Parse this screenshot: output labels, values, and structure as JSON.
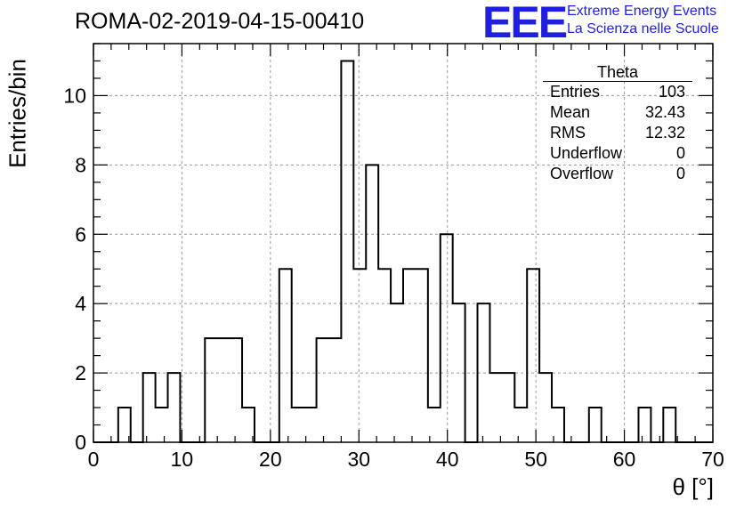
{
  "header": {
    "run_title": "ROMA-02-2019-04-15-00410",
    "logo_mark": "EEE",
    "logo_line1": "Extreme Energy Events",
    "logo_line2": "La Scienza nelle Scuole"
  },
  "stats_box": {
    "title": "Theta",
    "rows": [
      {
        "label": "Entries",
        "value": "103"
      },
      {
        "label": "Mean",
        "value": "32.43"
      },
      {
        "label": "RMS",
        "value": "12.32"
      },
      {
        "label": "Underflow",
        "value": "0"
      },
      {
        "label": "Overflow",
        "value": "0"
      }
    ]
  },
  "colors": {
    "logo": "#1f1fe0",
    "line": "#000000",
    "grid": "#999999"
  },
  "chart_data": {
    "type": "bar",
    "histogram": true,
    "title": "ROMA-02-2019-04-15-00410",
    "xlabel": "θ [°]",
    "ylabel": "Entries/bin",
    "xlim": [
      0,
      70
    ],
    "ylim": [
      0,
      11.5
    ],
    "xticks": [
      0,
      10,
      20,
      30,
      40,
      50,
      60,
      70
    ],
    "yticks": [
      0,
      2,
      4,
      6,
      8,
      10
    ],
    "grid": true,
    "bin_width": 1.4,
    "bin_start": 0,
    "values": [
      0,
      0,
      1,
      0,
      2,
      1,
      2,
      0,
      0,
      3,
      3,
      3,
      1,
      0,
      0,
      5,
      1,
      1,
      3,
      3,
      11,
      5,
      8,
      5,
      4,
      5,
      5,
      1,
      6,
      4,
      0,
      4,
      2,
      2,
      1,
      5,
      2,
      1,
      0,
      0,
      1,
      0,
      0,
      0,
      1,
      0,
      1,
      0,
      0,
      0
    ]
  }
}
